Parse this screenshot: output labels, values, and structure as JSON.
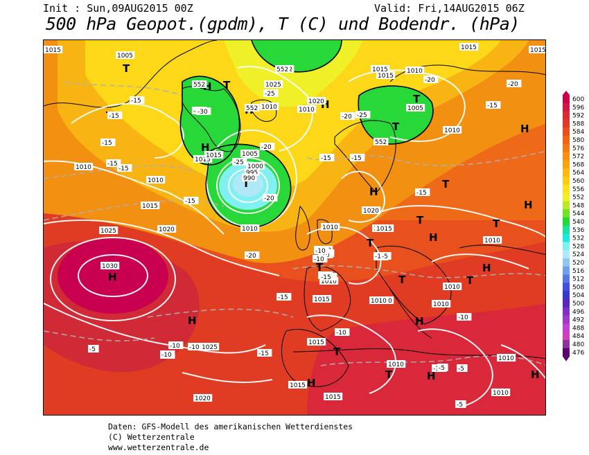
{
  "header": {
    "init": "Init : Sun,09AUG2015 00Z",
    "valid": "Valid: Fri,14AUG2015 06Z",
    "title": "500 hPa Geopot.(gpdm), T (C) und Bodendr. (hPa)"
  },
  "footer": {
    "line1": "Daten: GFS-Modell des amerikanischen Wetterdienstes",
    "line2": "(C) Wetterzentrale",
    "line3": "www.wetterzentrale.de"
  },
  "legend": {
    "values": [
      "600",
      "596",
      "592",
      "588",
      "584",
      "580",
      "576",
      "572",
      "568",
      "564",
      "560",
      "556",
      "552",
      "548",
      "544",
      "540",
      "536",
      "532",
      "528",
      "524",
      "520",
      "516",
      "512",
      "508",
      "504",
      "500",
      "496",
      "492",
      "488",
      "484",
      "480",
      "476"
    ],
    "colors": [
      "#c8004f",
      "#d01844",
      "#d82a33",
      "#e03a26",
      "#e84e1e",
      "#ee6418",
      "#f27a14",
      "#f69012",
      "#f8a410",
      "#fab812",
      "#fccc14",
      "#fce01c",
      "#f0f028",
      "#b8e828",
      "#70e028",
      "#28d838",
      "#20e0a0",
      "#20e8e0",
      "#80f0f0",
      "#b0e8f8",
      "#90c8f0",
      "#70a0e8",
      "#5878e0",
      "#4050d8",
      "#3838c8",
      "#5828b8",
      "#8030c0",
      "#a038c8",
      "#c040d0",
      "#d040b8",
      "#9030a0",
      "#580070"
    ]
  },
  "map": {
    "pressure_labels": [
      "1015",
      "1005",
      "1015",
      "1015",
      "1025",
      "1010",
      "1020",
      "1010",
      "1015",
      "1015",
      "1005",
      "1010",
      "1005",
      "1000",
      "995",
      "990",
      "1015",
      "1010",
      "1010",
      "1025",
      "1020",
      "1030",
      "1020",
      "1015",
      "1010",
      "1010",
      "1020",
      "1015",
      "1010",
      "1010",
      "1015",
      "1015",
      "1010",
      "1010",
      "1010",
      "1010",
      "1025",
      "1015",
      "1010",
      "1010",
      "1020",
      "1015",
      "1015",
      "1010",
      "1015",
      "1010"
    ],
    "temp_labels": [
      "-15",
      "-15",
      "-20",
      "-20",
      "-25",
      "-30",
      "-15",
      "-15",
      "-20",
      "-25",
      "-25",
      "-20",
      "-15",
      "-15",
      "-15",
      "-15",
      "-20",
      "-20",
      "-20",
      "-15",
      "-15",
      "-15",
      "-15",
      "-10",
      "-10",
      "-15",
      "-10",
      "-10",
      "-10",
      "-15",
      "-10",
      "-10",
      "-15",
      "-10",
      "-10",
      "-5",
      "-10",
      "-5",
      "-10",
      "-5",
      "-5",
      "-10",
      "-5",
      "-10"
    ],
    "geopot_labels": [
      "552",
      "552",
      "552",
      "552",
      "552"
    ],
    "high_symbol": "H",
    "low_symbol": "T"
  }
}
